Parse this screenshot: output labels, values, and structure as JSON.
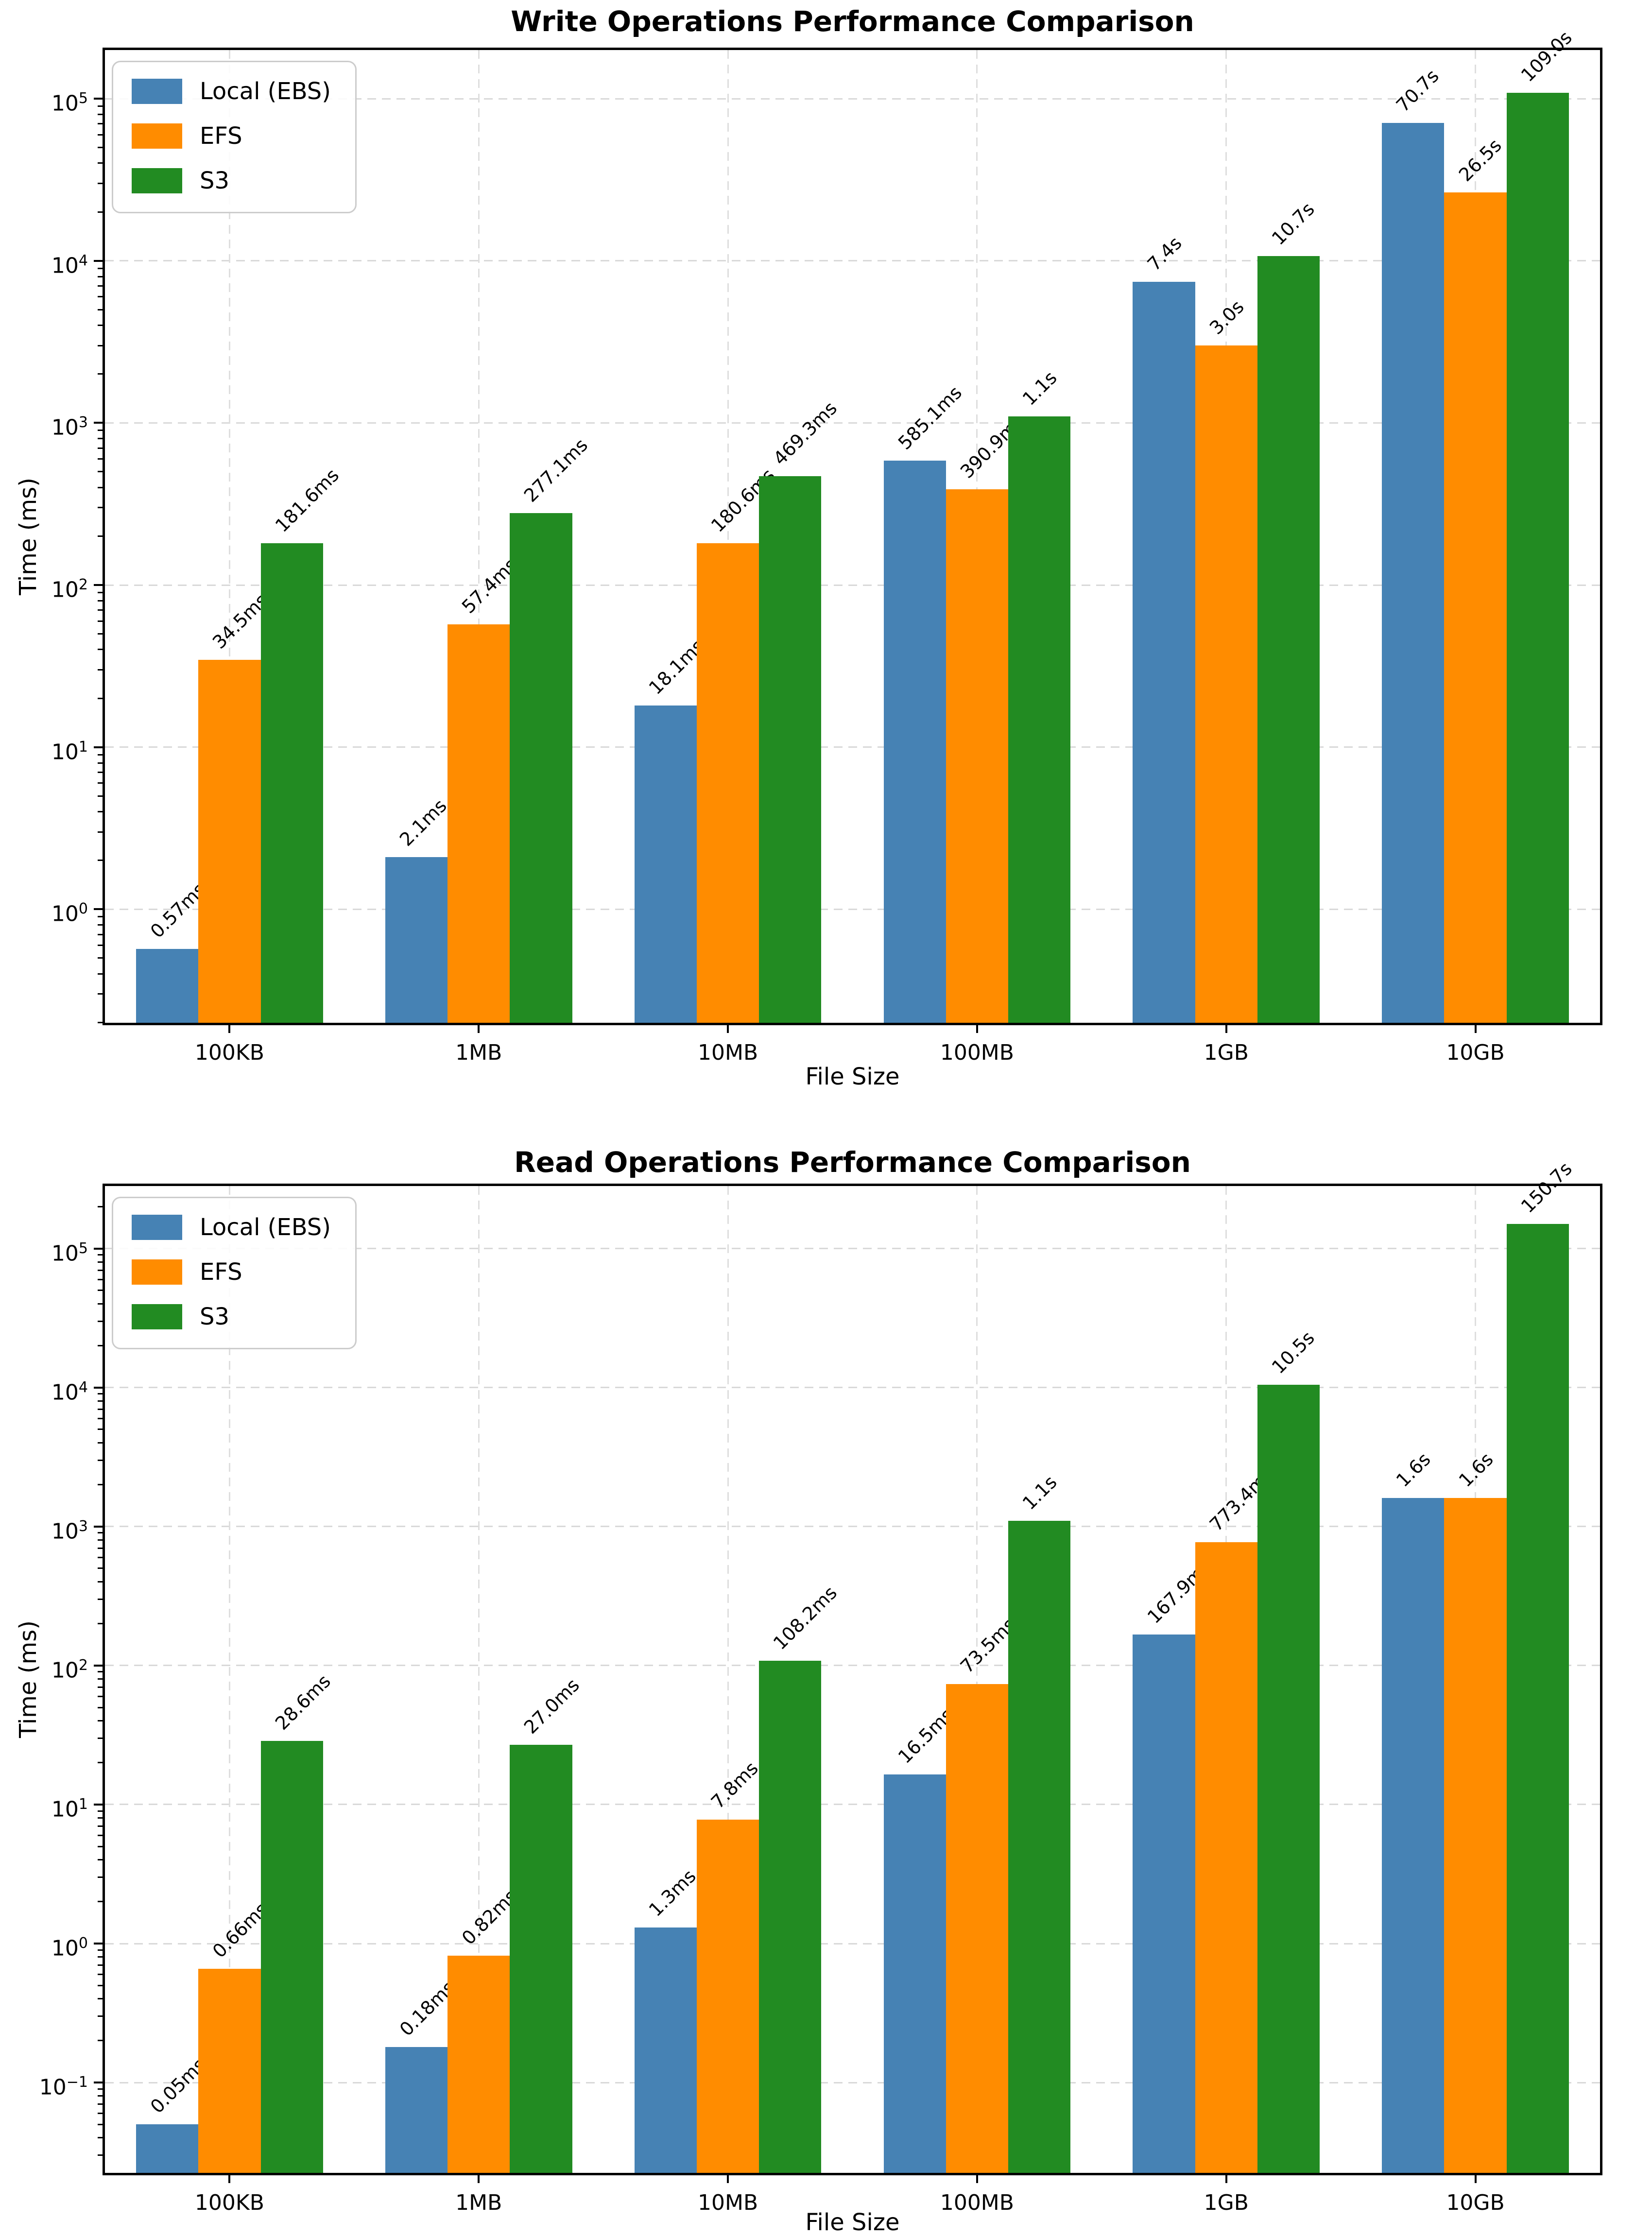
{
  "page": {
    "background": "#ffffff"
  },
  "chart_data": [
    {
      "type": "bar",
      "title": "Write Operations Performance Comparison",
      "xlabel": "File Size",
      "ylabel": "Time (ms)",
      "yscale": "log",
      "ylim_log10": [
        -0.7,
        5.3
      ],
      "ytick_exponents": [
        0,
        1,
        2,
        3,
        4,
        5
      ],
      "grid": true,
      "legend_position": "upper left",
      "categories": [
        "100KB",
        "1MB",
        "10MB",
        "100MB",
        "1GB",
        "10GB"
      ],
      "series": [
        {
          "key": "local-ebs",
          "name": "Local (EBS)",
          "color": "#4682B4",
          "values_ms": [
            0.57,
            2.1,
            18.1,
            585.1,
            7400,
            70700
          ],
          "labels": [
            "0.57ms",
            "2.1ms",
            "18.1ms",
            "585.1ms",
            "7.4s",
            "70.7s"
          ]
        },
        {
          "key": "efs",
          "name": "EFS",
          "color": "#FF8C00",
          "values_ms": [
            34.5,
            57.4,
            180.6,
            390.9,
            3000,
            26500
          ],
          "labels": [
            "34.5ms",
            "57.4ms",
            "180.6ms",
            "390.9ms",
            "3.0s",
            "26.5s"
          ]
        },
        {
          "key": "s3",
          "name": "S3",
          "color": "#228B22",
          "values_ms": [
            181.6,
            277.1,
            469.3,
            1100,
            10700,
            109000
          ],
          "labels": [
            "181.6ms",
            "277.1ms",
            "469.3ms",
            "1.1s",
            "10.7s",
            "109.0s"
          ]
        }
      ]
    },
    {
      "type": "bar",
      "title": "Read Operations Performance Comparison",
      "xlabel": "File Size",
      "ylabel": "Time (ms)",
      "yscale": "log",
      "ylim_log10": [
        -1.65,
        5.45
      ],
      "ytick_exponents": [
        -1,
        0,
        1,
        2,
        3,
        4,
        5
      ],
      "grid": true,
      "legend_position": "upper left",
      "categories": [
        "100KB",
        "1MB",
        "10MB",
        "100MB",
        "1GB",
        "10GB"
      ],
      "series": [
        {
          "key": "local-ebs",
          "name": "Local (EBS)",
          "color": "#4682B4",
          "values_ms": [
            0.05,
            0.18,
            1.3,
            16.5,
            167.9,
            1600
          ],
          "labels": [
            "0.05ms",
            "0.18ms",
            "1.3ms",
            "16.5ms",
            "167.9ms",
            "1.6s"
          ]
        },
        {
          "key": "efs",
          "name": "EFS",
          "color": "#FF8C00",
          "values_ms": [
            0.66,
            0.82,
            7.8,
            73.5,
            773.4,
            1600
          ],
          "labels": [
            "0.66ms",
            "0.82ms",
            "7.8ms",
            "73.5ms",
            "773.4ms",
            "1.6s"
          ]
        },
        {
          "key": "s3",
          "name": "S3",
          "color": "#228B22",
          "values_ms": [
            28.6,
            27.0,
            108.2,
            1100,
            10500,
            150700
          ],
          "labels": [
            "28.6ms",
            "27.0ms",
            "108.2ms",
            "1.1s",
            "10.5s",
            "150.7s"
          ]
        }
      ]
    }
  ]
}
